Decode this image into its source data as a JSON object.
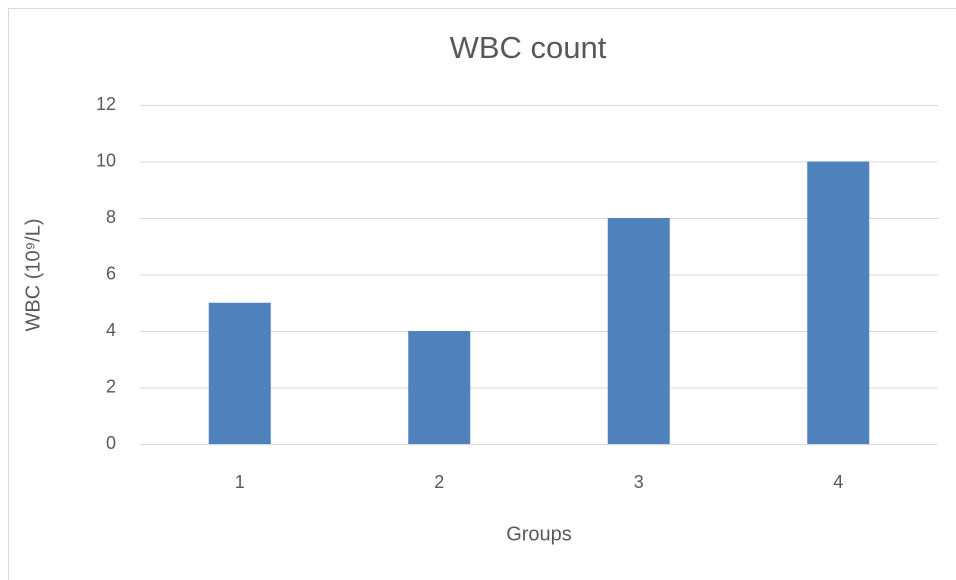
{
  "chart_data": {
    "type": "bar",
    "title": "WBC count",
    "x_label": "Groups",
    "y_label": "WBC (10⁹/L)",
    "categories": [
      "1",
      "2",
      "3",
      "4"
    ],
    "values": [
      5,
      4,
      8,
      10
    ],
    "color": "#4f81bd",
    "ylim": [
      0,
      12
    ],
    "yticks": [
      0,
      2,
      4,
      6,
      8,
      10,
      12
    ],
    "grid": true
  }
}
